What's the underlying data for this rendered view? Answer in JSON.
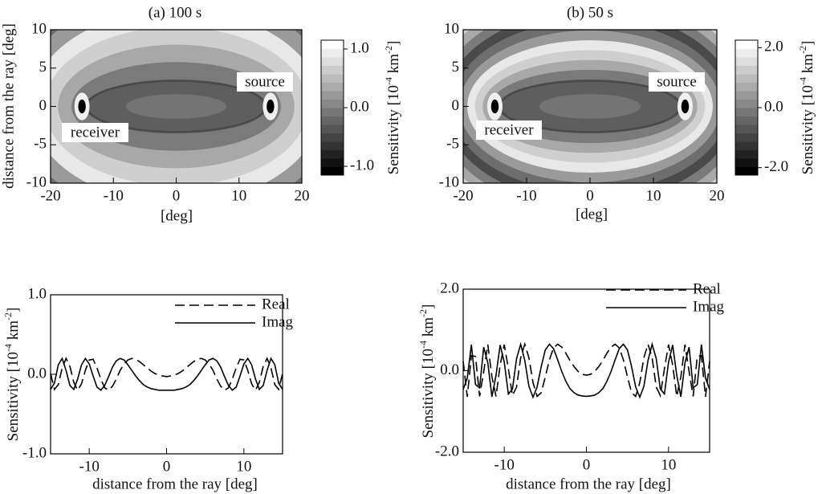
{
  "chart_data": [
    {
      "type": "contour",
      "title": "(a)  100 s",
      "xlabel": "[deg]",
      "ylabel": "distance from the ray [deg]",
      "xlim": [
        -20,
        20
      ],
      "ylim": [
        -10,
        10
      ],
      "xticks": [
        -20,
        -10,
        0,
        10,
        20
      ],
      "yticks": [
        -10,
        -5,
        0,
        5,
        10
      ],
      "annotations": [
        "source",
        "receiver"
      ],
      "colorbar": {
        "lim": [
          -1.15,
          1.15
        ],
        "ticks": [
          {
            "value": 1,
            "label": "1.0"
          },
          {
            "value": 0,
            "label": "0.0"
          },
          {
            "value": -1,
            "label": "-1.0"
          }
        ],
        "label": [
          "Sensitivity [10",
          "-4",
          " km",
          "-2",
          "]"
        ]
      }
    },
    {
      "type": "contour",
      "title": "(b)  50 s",
      "xlabel": "[deg]",
      "xlim": [
        -20,
        20
      ],
      "ylim": [
        -10,
        10
      ],
      "xticks": [
        -20,
        -10,
        0,
        10,
        20
      ],
      "yticks": [
        -10,
        -5,
        0,
        5,
        10
      ],
      "annotations": [
        "source",
        "receiver"
      ],
      "colorbar": {
        "lim": [
          -2.25,
          2.25
        ],
        "ticks": [
          {
            "value": 2,
            "label": "2.0"
          },
          {
            "value": 0,
            "label": "0.0"
          },
          {
            "value": -2,
            "label": "-2.0"
          }
        ],
        "label": [
          "Sensitivity [10",
          "-4",
          " km",
          "-2",
          "]"
        ]
      }
    },
    {
      "type": "line",
      "xlabel": "distance from the ray [deg]",
      "ylabel": [
        "Sensitivity [10",
        "-4",
        " km",
        "-2",
        "]"
      ],
      "xlim": [
        -15,
        15
      ],
      "ylim": [
        -1,
        1
      ],
      "xticks": [
        -10,
        0,
        10
      ],
      "yticks": [
        {
          "value": -1,
          "label": "-1.0"
        },
        {
          "value": 0,
          "label": "0.0"
        },
        {
          "value": 1,
          "label": "1.0"
        }
      ],
      "legend": "upper right",
      "x": [
        -15,
        -14.5,
        -14,
        -13.5,
        -13,
        -12.5,
        -12,
        -11.5,
        -11,
        -10.5,
        -10,
        -9.5,
        -9,
        -8.5,
        -8,
        -7.5,
        -7,
        -6.5,
        -6,
        -5.5,
        -5,
        -4.5,
        -4,
        -3.5,
        -3,
        -2.5,
        -2,
        -1.5,
        -1,
        -0.5,
        0,
        0.5,
        1,
        1.5,
        2,
        2.5,
        3,
        3.5,
        4,
        4.5,
        5,
        5.5,
        6,
        6.5,
        7,
        7.5,
        8,
        8.5,
        9,
        9.5,
        10,
        10.5,
        11,
        11.5,
        12,
        12.5,
        13,
        13.5,
        14,
        14.5,
        15
      ],
      "series": [
        {
          "name": "Real",
          "color": "#000000",
          "linestyle": "dashed",
          "values": [
            0.01,
            -0.19,
            -0.13,
            0.08,
            0.2,
            0.1,
            -0.1,
            -0.2,
            -0.12,
            0.05,
            0.18,
            0.19,
            0.08,
            -0.06,
            -0.17,
            -0.2,
            -0.15,
            -0.06,
            0.05,
            0.13,
            0.18,
            0.2,
            0.19,
            0.16,
            0.12,
            0.08,
            0.04,
            0.01,
            -0.01,
            -0.02,
            -0.03,
            -0.02,
            -0.01,
            0.01,
            0.04,
            0.08,
            0.12,
            0.16,
            0.19,
            0.2,
            0.18,
            0.13,
            0.05,
            -0.06,
            -0.15,
            -0.2,
            -0.17,
            -0.06,
            0.08,
            0.19,
            0.18,
            0.05,
            -0.12,
            -0.2,
            -0.1,
            0.1,
            0.2,
            0.08,
            -0.13,
            -0.19,
            0.01
          ]
        },
        {
          "name": "Imag",
          "color": "#000000",
          "linestyle": "solid",
          "values": [
            -0.19,
            -0.11,
            0.12,
            0.2,
            0.05,
            -0.14,
            -0.19,
            -0.06,
            0.12,
            0.2,
            0.13,
            -0.02,
            -0.16,
            -0.2,
            -0.14,
            -0.03,
            0.09,
            0.17,
            0.2,
            0.18,
            0.12,
            0.05,
            -0.02,
            -0.08,
            -0.13,
            -0.16,
            -0.18,
            -0.19,
            -0.2,
            -0.2,
            -0.2,
            -0.2,
            -0.2,
            -0.19,
            -0.18,
            -0.16,
            -0.13,
            -0.08,
            -0.02,
            0.05,
            0.12,
            0.18,
            0.2,
            0.17,
            0.09,
            -0.03,
            -0.14,
            -0.2,
            -0.16,
            -0.02,
            0.13,
            0.2,
            0.12,
            -0.06,
            -0.19,
            -0.14,
            0.05,
            0.2,
            0.12,
            -0.11,
            -0.19
          ]
        }
      ]
    },
    {
      "type": "line",
      "xlabel": "distance from the ray [deg]",
      "ylabel": [
        "Sensitivity [10",
        "-4",
        " km",
        "-2",
        "]"
      ],
      "xlim": [
        -15,
        15
      ],
      "ylim": [
        -2,
        2
      ],
      "xticks": [
        -10,
        0,
        10
      ],
      "yticks": [
        {
          "value": -2,
          "label": "-2.0"
        },
        {
          "value": 0,
          "label": "0.0"
        },
        {
          "value": 2,
          "label": "2.0"
        }
      ],
      "legend": "upper right",
      "x": [
        -15,
        -14.5,
        -14,
        -13.5,
        -13,
        -12.5,
        -12,
        -11.5,
        -11,
        -10.5,
        -10,
        -9.5,
        -9,
        -8.5,
        -8,
        -7.5,
        -7,
        -6.5,
        -6,
        -5.5,
        -5,
        -4.5,
        -4,
        -3.5,
        -3,
        -2.5,
        -2,
        -1.5,
        -1,
        -0.5,
        0,
        0.5,
        1,
        1.5,
        2,
        2.5,
        3,
        3.5,
        4,
        4.5,
        5,
        5.5,
        6,
        6.5,
        7,
        7.5,
        8,
        8.5,
        9,
        9.5,
        10,
        10.5,
        11,
        11.5,
        12,
        12.5,
        13,
        13.5,
        14,
        14.5,
        15
      ],
      "series": [
        {
          "name": "Real",
          "color": "#000000",
          "linestyle": "dashed",
          "values": [
            0.23,
            -0.64,
            0.37,
            0.35,
            -0.63,
            -0.02,
            0.64,
            -0.15,
            -0.63,
            0.14,
            0.64,
            0.05,
            -0.61,
            -0.4,
            0.32,
            0.65,
            0.32,
            -0.29,
            -0.63,
            -0.54,
            -0.15,
            0.27,
            0.56,
            0.65,
            0.58,
            0.43,
            0.25,
            0.1,
            -0.02,
            -0.09,
            -0.11,
            -0.09,
            -0.02,
            0.1,
            0.25,
            0.43,
            0.58,
            0.65,
            0.56,
            0.27,
            -0.15,
            -0.54,
            -0.63,
            -0.29,
            0.32,
            0.65,
            0.32,
            -0.4,
            -0.61,
            0.05,
            0.64,
            0.14,
            -0.63,
            -0.15,
            0.64,
            -0.02,
            -0.63,
            0.35,
            0.37,
            -0.64,
            0.23
          ]
        },
        {
          "name": "Imag",
          "color": "#000000",
          "linestyle": "solid",
          "values": [
            -0.46,
            -0.18,
            0.64,
            -0.34,
            -0.42,
            0.58,
            0.19,
            -0.64,
            -0.11,
            0.63,
            0.21,
            -0.57,
            -0.45,
            0.3,
            0.65,
            0.25,
            -0.38,
            -0.65,
            -0.4,
            0.1,
            0.51,
            0.65,
            0.54,
            0.27,
            -0.02,
            -0.26,
            -0.44,
            -0.54,
            -0.6,
            -0.62,
            -0.63,
            -0.62,
            -0.6,
            -0.54,
            -0.44,
            -0.26,
            -0.02,
            0.27,
            0.54,
            0.65,
            0.51,
            0.1,
            -0.4,
            -0.65,
            -0.38,
            0.25,
            0.65,
            0.3,
            -0.45,
            -0.57,
            0.21,
            0.63,
            -0.11,
            -0.64,
            0.19,
            0.58,
            -0.42,
            -0.34,
            0.64,
            -0.18,
            -0.46
          ]
        }
      ]
    }
  ]
}
